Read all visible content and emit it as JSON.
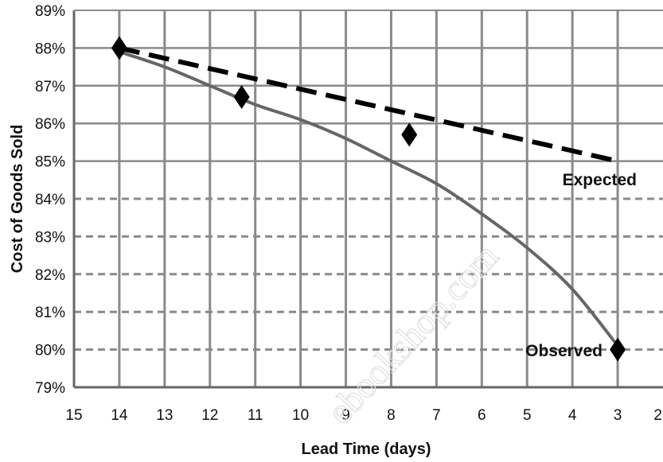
{
  "chart_data": {
    "type": "line",
    "xlabel": "Lead Time (days)",
    "ylabel": "Cost of Goods Sold",
    "xlim": [
      15,
      2
    ],
    "ylim": [
      79,
      89
    ],
    "x_reversed": true,
    "x_ticks": [
      15,
      14,
      13,
      12,
      11,
      10,
      9,
      8,
      7,
      6,
      5,
      4,
      3,
      2
    ],
    "x_tick_labels": [
      "15",
      "14",
      "13",
      "12",
      "11",
      "10",
      "9",
      "8",
      "7",
      "6",
      "5",
      "4",
      "3",
      "2"
    ],
    "y_ticks": [
      79,
      80,
      81,
      82,
      83,
      84,
      85,
      86,
      87,
      88,
      89
    ],
    "y_tick_labels": [
      "79%",
      "80%",
      "81%",
      "82%",
      "83%",
      "84%",
      "85%",
      "86%",
      "87%",
      "88%",
      "89%"
    ],
    "grid": true,
    "series": [
      {
        "name": "Expected",
        "style": "dashed",
        "color": "#000000",
        "x": [
          14,
          3
        ],
        "y": [
          88,
          85
        ]
      },
      {
        "name": "Observed",
        "style": "solid-curve",
        "color": "#666666",
        "x": [
          14,
          13,
          12,
          11,
          10,
          9,
          8,
          7,
          6,
          5,
          4,
          3
        ],
        "y": [
          87.9,
          87.5,
          87.0,
          86.5,
          86.1,
          85.6,
          85.0,
          84.4,
          83.6,
          82.7,
          81.6,
          80.1
        ]
      },
      {
        "name": "Data points",
        "style": "diamond-markers",
        "color": "#000000",
        "x": [
          14,
          11.3,
          7.6,
          3
        ],
        "y": [
          88.0,
          86.7,
          85.7,
          80.0
        ]
      }
    ],
    "series_labels": {
      "expected": "Expected",
      "observed": "Observed"
    }
  },
  "watermark": "ebookshop.com"
}
